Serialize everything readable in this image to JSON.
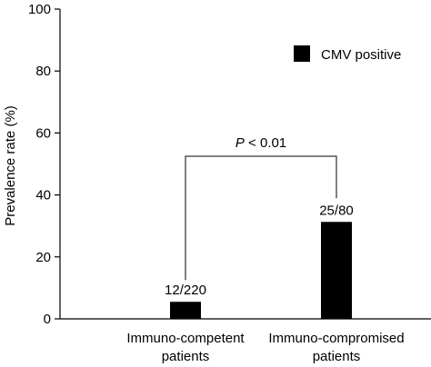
{
  "chart_data": {
    "type": "bar",
    "categories": [
      [
        "Immuno-competent",
        "patients"
      ],
      [
        "Immuno-compromised",
        "patients"
      ]
    ],
    "series": [
      {
        "name": "CMV positive",
        "values": [
          5.5,
          31.3
        ],
        "data_labels": [
          "12/220",
          "25/80"
        ],
        "color": "#000000"
      }
    ],
    "ylabel": "Prevalence rate (%)",
    "ylim": [
      0,
      100
    ],
    "yticks": [
      0,
      20,
      40,
      60,
      80,
      100
    ],
    "legend_position": "top-right",
    "grid": false,
    "annotation": {
      "italic_part": "P",
      "rest": " < 0.01"
    }
  }
}
